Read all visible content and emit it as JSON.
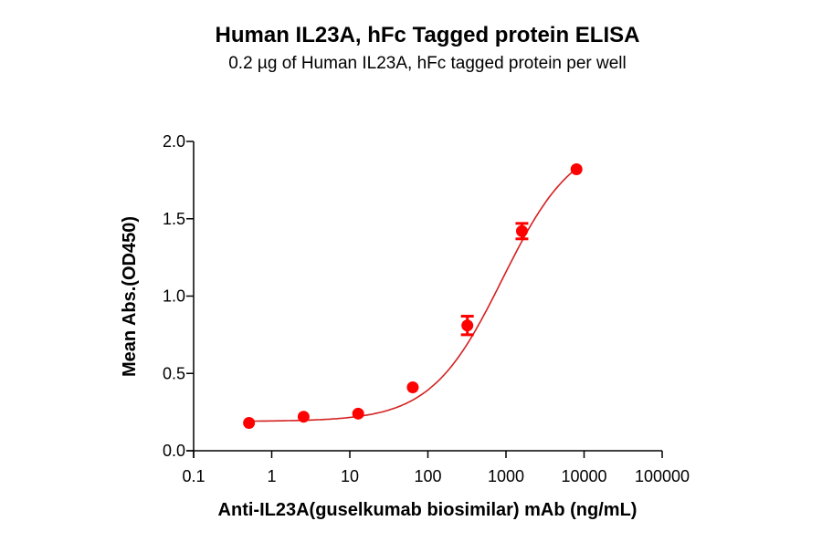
{
  "title": "Human IL23A, hFc Tagged protein ELISA",
  "subtitle": "0.2 µg of Human IL23A, hFc tagged protein per well",
  "chart_data": {
    "type": "scatter",
    "title": "Human IL23A, hFc Tagged protein ELISA",
    "subtitle": "0.2 µg of Human IL23A, hFc tagged protein per well",
    "xlabel": "Anti-IL23A(guselkumab biosimilar) mAb (ng/mL)",
    "ylabel": "Mean Abs.(OD450)",
    "xscale": "log",
    "xlim": [
      0.1,
      100000
    ],
    "ylim": [
      0,
      2.0
    ],
    "x_ticks": [
      "0.1",
      "1",
      "10",
      "100",
      "1000",
      "10000",
      "100000"
    ],
    "y_ticks": [
      "0.0",
      "0.5",
      "1.0",
      "1.5",
      "2.0"
    ],
    "grid": false,
    "legend": null,
    "color": "#ff0000",
    "fit": "4-parameter logistic curve",
    "series": [
      {
        "name": "Human IL23A, hFc",
        "x": [
          0.512,
          2.56,
          12.8,
          64,
          320,
          1600,
          8000
        ],
        "y": [
          0.18,
          0.22,
          0.24,
          0.41,
          0.81,
          1.42,
          1.82
        ],
        "error": [
          0.01,
          0.01,
          0.01,
          0.01,
          0.06,
          0.05,
          0.01
        ]
      }
    ]
  }
}
